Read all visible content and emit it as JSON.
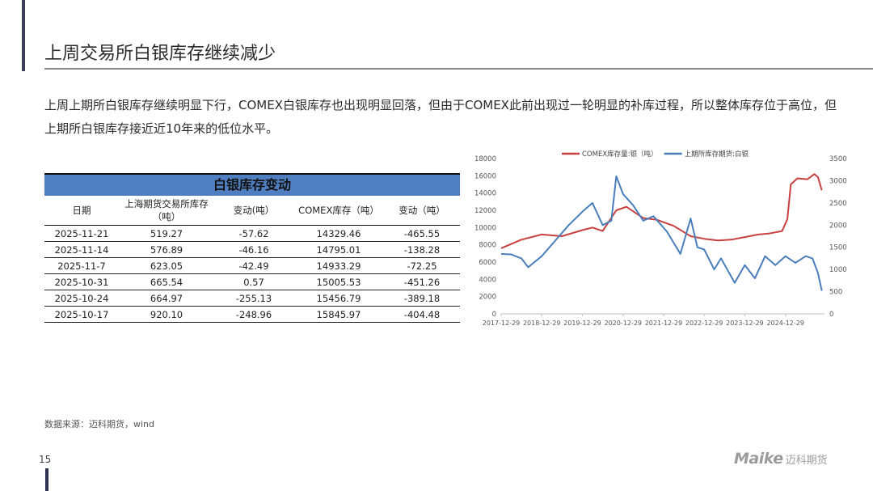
{
  "page": {
    "title": "上周交易所白银库存继续减少",
    "summary": "上周上期所白银库存继续明显下行，COMEX白银库存也出现明显回落，但由于COMEX此前出现过一轮明显的补库过程，所以整体库存位于高位，但上期所白银库存接近近10年来的低位水平。",
    "source": "数据来源：迈科期货，wind",
    "page_number": "15",
    "logo_text": "Maike",
    "logo_cn": "迈科期货"
  },
  "table": {
    "title": "白银库存变动",
    "headers": [
      "日期",
      "上海期货交易所库存（吨）",
      "变动(吨）",
      "COMEX库存（吨）",
      "变动（吨）"
    ],
    "rows": [
      [
        "2025-11-21",
        "519.27",
        "-57.62",
        "14329.46",
        "-465.55"
      ],
      [
        "2025-11-14",
        "576.89",
        "-46.16",
        "14795.01",
        "-138.28"
      ],
      [
        "2025-11-7",
        "623.05",
        "-42.49",
        "14933.29",
        "-72.25"
      ],
      [
        "2025-10-31",
        "665.54",
        "0.57",
        "15005.53",
        "-451.26"
      ],
      [
        "2025-10-24",
        "664.97",
        "-255.13",
        "15456.79",
        "-389.18"
      ],
      [
        "2025-10-17",
        "920.10",
        "-248.96",
        "15845.97",
        "-404.48"
      ]
    ]
  },
  "chart_data": {
    "type": "line",
    "title": "",
    "legend_position": "top",
    "x_ticks": [
      "2017-12-29",
      "2018-12-29",
      "2019-12-29",
      "2020-12-29",
      "2021-12-29",
      "2022-12-29",
      "2023-12-29",
      "2024-12-29"
    ],
    "y_left": {
      "range": [
        0,
        18000
      ],
      "ticks": [
        "0",
        "2000",
        "4000",
        "6000",
        "8000",
        "10000",
        "12000",
        "14000",
        "16000",
        "18000"
      ]
    },
    "y_right": {
      "range": [
        0,
        3500
      ],
      "ticks": [
        "0",
        "500",
        "1000",
        "1500",
        "2000",
        "2500",
        "3000",
        "3500"
      ]
    },
    "series": [
      {
        "name": "COMEX库存量:银（吨）",
        "axis": "left",
        "color": "#c8413f",
        "points": [
          [
            "2017-12-29",
            7600
          ],
          [
            "2018-06-29",
            8600
          ],
          [
            "2018-12-29",
            9200
          ],
          [
            "2019-06-29",
            9000
          ],
          [
            "2019-12-29",
            9700
          ],
          [
            "2020-03-29",
            10000
          ],
          [
            "2020-06-29",
            9600
          ],
          [
            "2020-10-29",
            12000
          ],
          [
            "2021-01-29",
            12400
          ],
          [
            "2021-06-29",
            11100
          ],
          [
            "2021-10-29",
            10900
          ],
          [
            "2022-03-29",
            10200
          ],
          [
            "2022-08-29",
            9000
          ],
          [
            "2022-12-29",
            8700
          ],
          [
            "2023-04-29",
            8500
          ],
          [
            "2023-08-29",
            8600
          ],
          [
            "2023-12-29",
            8900
          ],
          [
            "2024-04-29",
            9200
          ],
          [
            "2024-07-29",
            9300
          ],
          [
            "2024-11-29",
            9600
          ],
          [
            "2025-01-15",
            11000
          ],
          [
            "2025-02-15",
            15000
          ],
          [
            "2025-04-15",
            15700
          ],
          [
            "2025-07-15",
            15600
          ],
          [
            "2025-09-15",
            16200
          ],
          [
            "2025-10-17",
            15846
          ],
          [
            "2025-11-21",
            14329
          ]
        ]
      },
      {
        "name": "上期所库存期货:白银",
        "axis": "right",
        "color": "#4a7ebb",
        "points": [
          [
            "2017-12-29",
            1350
          ],
          [
            "2018-03-29",
            1340
          ],
          [
            "2018-06-29",
            1250
          ],
          [
            "2018-08-29",
            1050
          ],
          [
            "2018-12-29",
            1300
          ],
          [
            "2019-04-29",
            1650
          ],
          [
            "2019-08-29",
            2000
          ],
          [
            "2019-12-29",
            2300
          ],
          [
            "2020-03-29",
            2500
          ],
          [
            "2020-06-29",
            2000
          ],
          [
            "2020-09-15",
            2100
          ],
          [
            "2020-10-29",
            3100
          ],
          [
            "2020-12-29",
            2700
          ],
          [
            "2021-03-29",
            2450
          ],
          [
            "2021-06-29",
            2100
          ],
          [
            "2021-09-29",
            2200
          ],
          [
            "2022-01-29",
            1850
          ],
          [
            "2022-05-29",
            1350
          ],
          [
            "2022-08-29",
            2150
          ],
          [
            "2022-10-29",
            1500
          ],
          [
            "2022-12-29",
            1450
          ],
          [
            "2023-03-29",
            1000
          ],
          [
            "2023-05-29",
            1250
          ],
          [
            "2023-09-29",
            700
          ],
          [
            "2023-12-29",
            1100
          ],
          [
            "2024-03-29",
            800
          ],
          [
            "2024-06-29",
            1300
          ],
          [
            "2024-09-29",
            1100
          ],
          [
            "2024-12-29",
            1300
          ],
          [
            "2025-03-29",
            1150
          ],
          [
            "2025-06-29",
            1300
          ],
          [
            "2025-08-29",
            1250
          ],
          [
            "2025-10-17",
            920
          ],
          [
            "2025-11-21",
            519
          ]
        ]
      }
    ]
  }
}
